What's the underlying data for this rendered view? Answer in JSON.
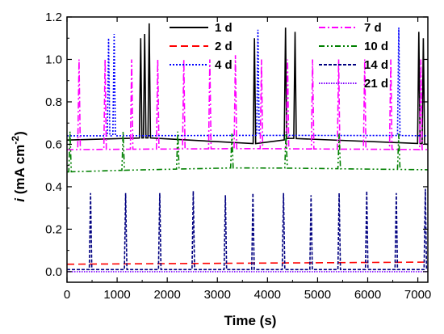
{
  "chart_data": {
    "type": "line",
    "title": "",
    "xlabel": "Time (s)",
    "ylabel_main": "i",
    "ylabel_unit": " (mA cm",
    "ylabel_exp": "-2",
    "ylabel_close": ")",
    "xlim": [
      0,
      7200
    ],
    "ylim": [
      -0.05,
      1.2
    ],
    "x_ticks": [
      0,
      1000,
      2000,
      3000,
      4000,
      5000,
      6000,
      7000
    ],
    "x_tick_labels": [
      "0",
      "1000",
      "2000",
      "3000",
      "4000",
      "5000",
      "6000",
      "7000"
    ],
    "y_ticks": [
      0.0,
      0.2,
      0.4,
      0.6,
      0.8,
      1.0,
      1.2
    ],
    "y_tick_labels": [
      "0.0",
      "0.2",
      "0.4",
      "0.6",
      "0.8",
      "1.0",
      "1.2"
    ],
    "grid": false,
    "legend_placement": "top",
    "series": [
      {
        "name": "1 d",
        "color": "#000000",
        "dash": "solid",
        "baseline": [
          [
            0,
            0.62
          ],
          [
            1500,
            0.63
          ],
          [
            2800,
            0.63
          ],
          [
            3000,
            0.605
          ],
          [
            3500,
            0.605
          ],
          [
            4200,
            0.6
          ],
          [
            4400,
            0.63
          ],
          [
            5000,
            0.62
          ],
          [
            6200,
            0.62
          ],
          [
            7200,
            0.6
          ]
        ],
        "spikes": [
          [
            1470,
            1.1
          ],
          [
            1550,
            1.12
          ],
          [
            1640,
            1.17
          ],
          [
            3740,
            1.1
          ],
          [
            4360,
            1.15
          ],
          [
            4550,
            1.13
          ],
          [
            7020,
            1.13
          ],
          [
            7110,
            1.1
          ]
        ]
      },
      {
        "name": "2 d",
        "color": "#ff0000",
        "dash": "long-dash",
        "baseline": [
          [
            0,
            0.035
          ],
          [
            3600,
            0.04
          ],
          [
            7200,
            0.045
          ]
        ],
        "spikes": []
      },
      {
        "name": "4 d",
        "color": "#0000ff",
        "dash": "dotted",
        "baseline": [
          [
            0,
            0.64
          ],
          [
            3000,
            0.64
          ],
          [
            5000,
            0.645
          ],
          [
            7200,
            0.64
          ]
        ],
        "spikes": [
          [
            830,
            1.1
          ],
          [
            940,
            1.12
          ],
          [
            3810,
            1.14
          ],
          [
            6620,
            1.15
          ]
        ]
      },
      {
        "name": "7 d",
        "color": "#ff00ff",
        "dash": "dash-dot",
        "baseline": [
          [
            0,
            0.575
          ],
          [
            3600,
            0.58
          ],
          [
            7200,
            0.575
          ]
        ],
        "spikes": [
          [
            240,
            1.0
          ],
          [
            760,
            1.0
          ],
          [
            1290,
            1.0
          ],
          [
            1810,
            1.0
          ],
          [
            2330,
            1.0
          ],
          [
            2850,
            1.0
          ],
          [
            3360,
            1.02
          ],
          [
            3880,
            1.0
          ],
          [
            4400,
            1.0
          ],
          [
            4900,
            1.0
          ],
          [
            5420,
            1.0
          ],
          [
            5940,
            1.0
          ],
          [
            6460,
            1.0
          ],
          [
            7060,
            1.0
          ]
        ]
      },
      {
        "name": "10 d",
        "color": "#008000",
        "dash": "dash-dot-dot",
        "baseline": [
          [
            0,
            0.47
          ],
          [
            1500,
            0.48
          ],
          [
            3600,
            0.49
          ],
          [
            7200,
            0.48
          ]
        ],
        "spikes": [
          [
            60,
            0.66
          ],
          [
            1120,
            0.66
          ],
          [
            2210,
            0.66
          ],
          [
            3290,
            0.65
          ],
          [
            4370,
            0.66
          ],
          [
            5430,
            0.65
          ],
          [
            6620,
            0.65
          ]
        ]
      },
      {
        "name": "14 d",
        "color": "#000080",
        "dash": "short-dash",
        "baseline": [
          [
            0,
            0.01
          ],
          [
            7200,
            0.01
          ]
        ],
        "spikes": [
          [
            470,
            0.37
          ],
          [
            1170,
            0.37
          ],
          [
            1850,
            0.37
          ],
          [
            2520,
            0.38
          ],
          [
            3160,
            0.36
          ],
          [
            3710,
            0.37
          ],
          [
            4320,
            0.37
          ],
          [
            4870,
            0.36
          ],
          [
            5430,
            0.37
          ],
          [
            5980,
            0.38
          ],
          [
            6570,
            0.37
          ],
          [
            7150,
            0.39
          ]
        ]
      },
      {
        "name": "21 d",
        "color": "#8000ff",
        "dash": "fine-dotted",
        "baseline": [
          [
            0,
            0.0
          ],
          [
            7200,
            0.0
          ]
        ],
        "spikes": []
      }
    ]
  }
}
